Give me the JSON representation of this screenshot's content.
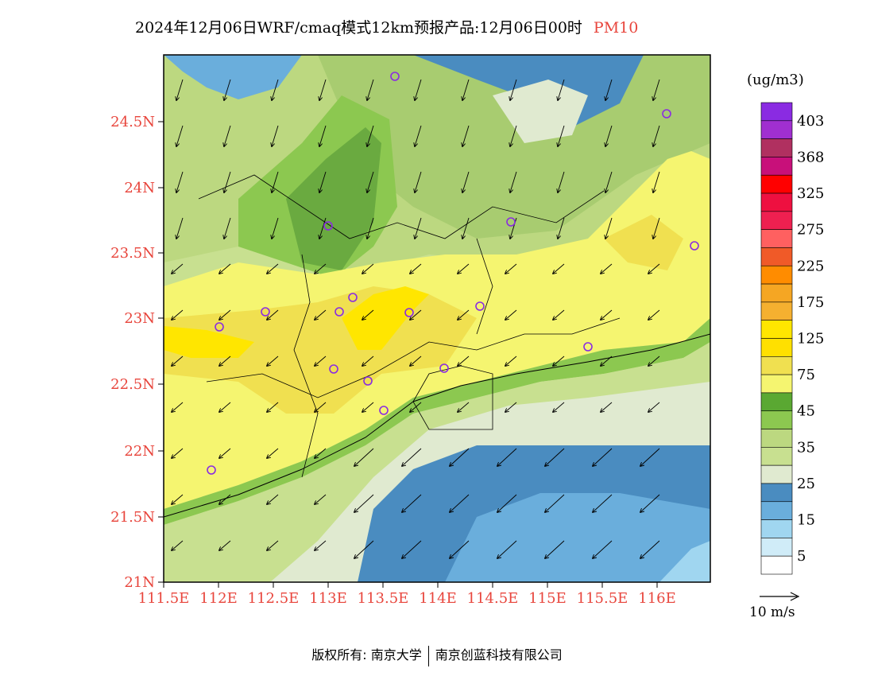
{
  "title": {
    "text": "2024年12月06日WRF/cmaq模式12km预报产品:12月06日00时",
    "variable": "PM10"
  },
  "colorbar": {
    "unit": "(ug/m3)",
    "labels": [
      "403",
      "368",
      "325",
      "275",
      "225",
      "175",
      "125",
      "75",
      "45",
      "35",
      "25",
      "15",
      "5"
    ],
    "colors": [
      "#8a2be2",
      "#a02fd0",
      "#b03060",
      "#c8107a",
      "#ff0000",
      "#ee1040",
      "#ee2050",
      "#ff6060",
      "#f05a28",
      "#ff8c00",
      "#f5a623",
      "#f5b030",
      "#ffe600",
      "#ffe000",
      "#f0e050",
      "#f5f570",
      "#5aa832",
      "#8cc850",
      "#bcd880",
      "#c8e090",
      "#e0ead0",
      "#4a8cc0",
      "#6aaedc",
      "#a0d6f0",
      "#d0ecf8",
      "#ffffff"
    ]
  },
  "axes": {
    "lat_labels": [
      "24.5N",
      "24N",
      "23.5N",
      "23N",
      "22.5N",
      "22N",
      "21.5N",
      "21N"
    ],
    "lon_labels": [
      "111.5E",
      "112E",
      "112.5E",
      "113E",
      "113.5E",
      "114E",
      "114.5E",
      "115E",
      "115.5E",
      "116E"
    ]
  },
  "wind_reference": {
    "label": "10 m/s"
  },
  "footer": {
    "left": "版权所有: 南京大学",
    "right": "南京创蓝科技有限公司"
  }
}
